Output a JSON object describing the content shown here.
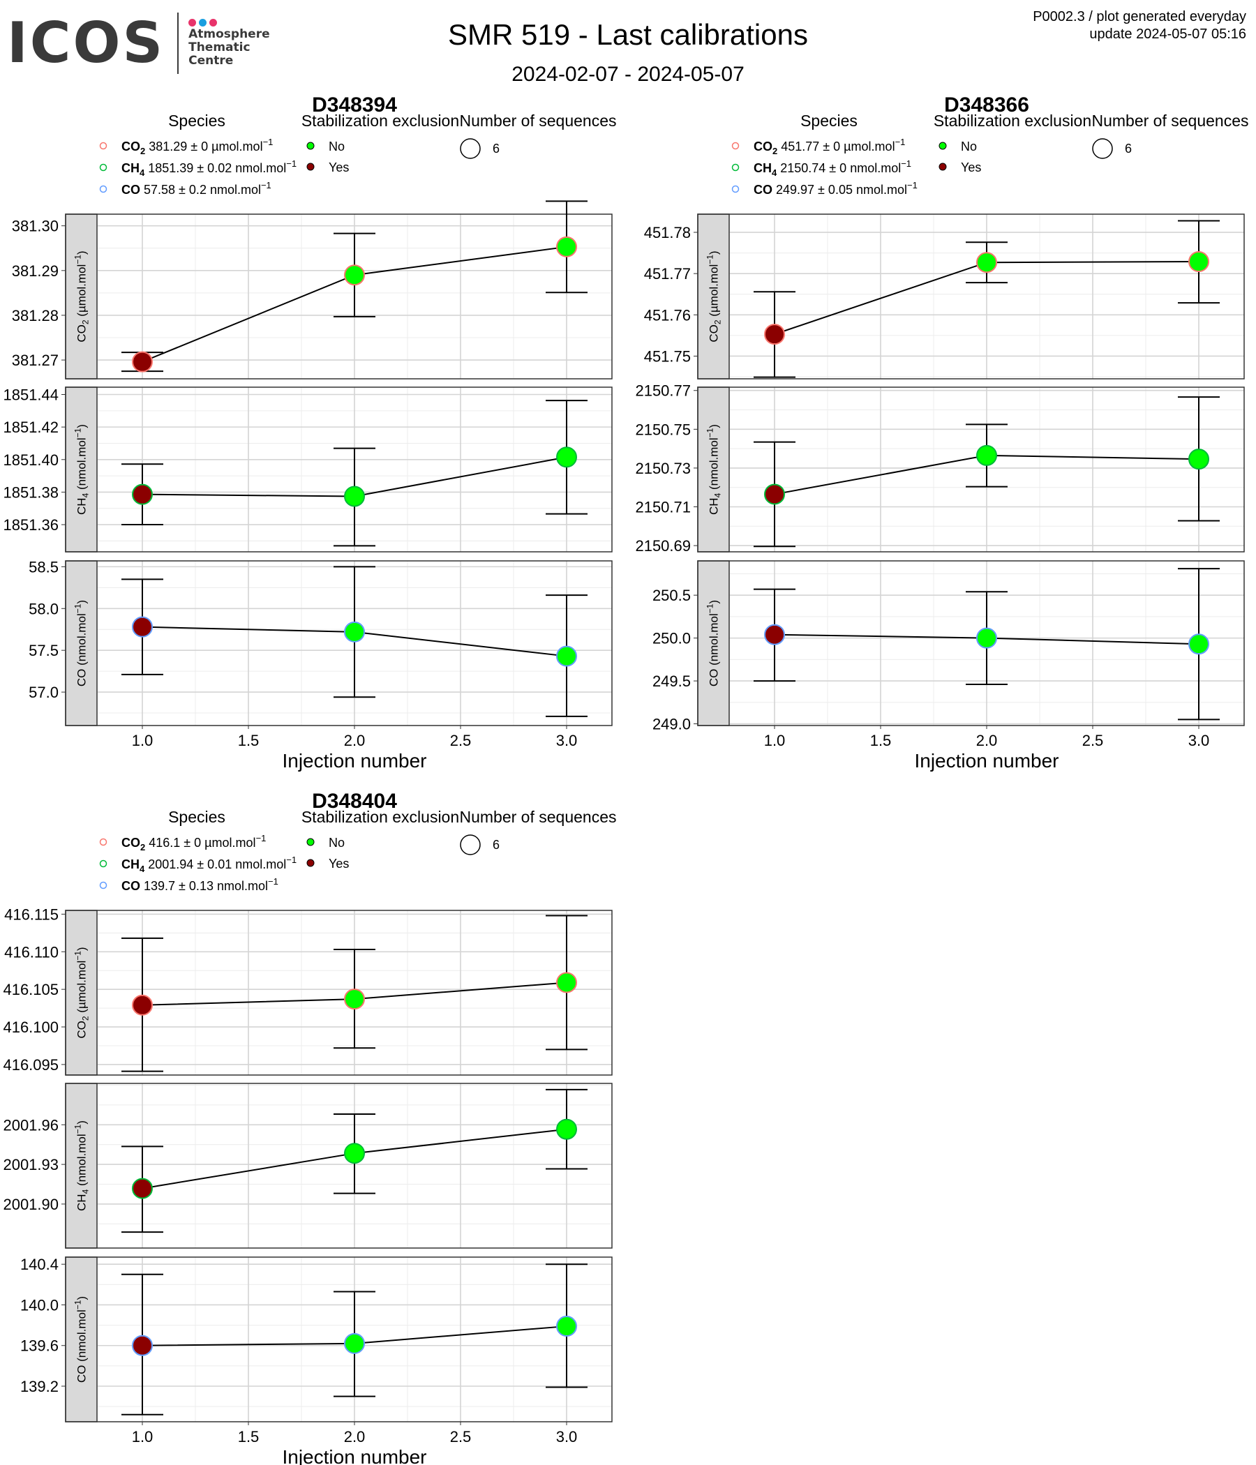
{
  "header": {
    "logo_text": "ICOS",
    "logo_lines": [
      "Atmosphere",
      "Thematic",
      "Centre"
    ],
    "logo_dot_colors": [
      "#e8336a",
      "#1a9fe0",
      "#e8336a"
    ],
    "title": "SMR 519 - Last calibrations",
    "subtitle": "2024-02-07 - 2024-05-07",
    "info_line1": "P0002.3 / plot generated everyday",
    "info_line2": "update  2024-05-07 05:16"
  },
  "legend_titles": {
    "species": "Species",
    "stabilization": "Stabilization exclusion",
    "sequences": "Number of sequences"
  },
  "stabilization_options": [
    {
      "label": "No",
      "color": "#00ff00"
    },
    {
      "label": "Yes",
      "color": "#8b0000"
    }
  ],
  "sequences_value": "6",
  "species_colors": {
    "CO2": "#f8766d",
    "CH4": "#00ba38",
    "CO": "#619cff"
  },
  "xlabel": "Injection number",
  "chart_data": [
    {
      "type": "scatter",
      "title": "D348394",
      "xlabel": "Injection number",
      "xlim": [
        0.8,
        3.22
      ],
      "xticks": [
        "1.0",
        "1.5",
        "2.0",
        "2.5",
        "3.0"
      ],
      "species_legend": [
        {
          "name": "CO2",
          "value": "381.29",
          "unc": "0",
          "unit": "µmol.mol",
          "exp": "−1"
        },
        {
          "name": "CH4",
          "value": "1851.39",
          "unc": "0.02",
          "unit": "nmol.mol",
          "exp": "−1"
        },
        {
          "name": "CO",
          "value": "57.58",
          "unc": "0.2",
          "unit": "nmol.mol",
          "exp": "−1"
        }
      ],
      "panels": [
        {
          "species": "CO2",
          "ylabel_sp": "CO",
          "ylabel_sub": "2",
          "ylabel_unit": "µmol.mol",
          "ylim": [
            381.2658,
            381.3026
          ],
          "yticks": [
            "381.27",
            "381.28",
            "381.29",
            "381.30"
          ],
          "points": [
            {
              "x": 1,
              "y": 381.2696,
              "lo": 381.2675,
              "hi": 381.2717,
              "stab": "Yes"
            },
            {
              "x": 2,
              "y": 381.289,
              "lo": 381.2797,
              "hi": 381.2983,
              "stab": "No"
            },
            {
              "x": 3,
              "y": 381.2953,
              "lo": 381.2851,
              "hi": 381.3055,
              "stab": "No"
            }
          ]
        },
        {
          "species": "CH4",
          "ylabel_sp": "CH",
          "ylabel_sub": "4",
          "ylabel_unit": "nmol.mol",
          "ylim": [
            1851.3433,
            1851.4445
          ],
          "yticks": [
            "1851.36",
            "1851.38",
            "1851.40",
            "1851.42",
            "1851.44"
          ],
          "points": [
            {
              "x": 1,
              "y": 1851.3786,
              "lo": 1851.36,
              "hi": 1851.3972,
              "stab": "Yes"
            },
            {
              "x": 2,
              "y": 1851.3774,
              "lo": 1851.347,
              "hi": 1851.4069,
              "stab": "No"
            },
            {
              "x": 3,
              "y": 1851.4015,
              "lo": 1851.3666,
              "hi": 1851.4363,
              "stab": "No"
            }
          ]
        },
        {
          "species": "CO",
          "ylabel_sp": "CO",
          "ylabel_sub": "",
          "ylabel_unit": "nmol.mol",
          "ylim": [
            56.6,
            58.57
          ],
          "yticks": [
            "57.0",
            "57.5",
            "58.0",
            "58.5"
          ],
          "points": [
            {
              "x": 1,
              "y": 57.78,
              "lo": 57.21,
              "hi": 58.35,
              "stab": "Yes"
            },
            {
              "x": 2,
              "y": 57.72,
              "lo": 56.94,
              "hi": 58.5,
              "stab": "No"
            },
            {
              "x": 3,
              "y": 57.43,
              "lo": 56.71,
              "hi": 58.16,
              "stab": "No"
            }
          ]
        }
      ]
    },
    {
      "type": "scatter",
      "title": "D348366",
      "xlabel": "Injection number",
      "xlim": [
        0.8,
        3.22
      ],
      "xticks": [
        "1.0",
        "1.5",
        "2.0",
        "2.5",
        "3.0"
      ],
      "species_legend": [
        {
          "name": "CO2",
          "value": "451.77",
          "unc": "0",
          "unit": "µmol.mol",
          "exp": "−1"
        },
        {
          "name": "CH4",
          "value": "2150.74",
          "unc": "0",
          "unit": "nmol.mol",
          "exp": "−1"
        },
        {
          "name": "CO",
          "value": "249.97",
          "unc": "0.05",
          "unit": "nmol.mol",
          "exp": "−1"
        }
      ],
      "panels": [
        {
          "species": "CO2",
          "ylabel_sp": "CO",
          "ylabel_sub": "2",
          "ylabel_unit": "µmol.mol",
          "ylim": [
            451.7445,
            451.7844
          ],
          "yticks": [
            "451.75",
            "451.76",
            "451.77",
            "451.78"
          ],
          "points": [
            {
              "x": 1,
              "y": 451.7553,
              "lo": 451.7449,
              "hi": 451.7656,
              "stab": "Yes"
            },
            {
              "x": 2,
              "y": 451.7727,
              "lo": 451.7678,
              "hi": 451.7776,
              "stab": "No"
            },
            {
              "x": 3,
              "y": 451.7729,
              "lo": 451.7629,
              "hi": 451.7828,
              "stab": "No"
            }
          ]
        },
        {
          "species": "CH4",
          "ylabel_sp": "CH",
          "ylabel_sub": "4",
          "ylabel_unit": "nmol.mol",
          "ylim": [
            2150.6868,
            2150.7717
          ],
          "yticks": [
            "2150.69",
            "2150.71",
            "2150.73",
            "2150.75",
            "2150.77"
          ],
          "points": [
            {
              "x": 1,
              "y": 2150.7165,
              "lo": 2150.6896,
              "hi": 2150.7434,
              "stab": "Yes"
            },
            {
              "x": 2,
              "y": 2150.7365,
              "lo": 2150.7204,
              "hi": 2150.7525,
              "stab": "No"
            },
            {
              "x": 3,
              "y": 2150.7346,
              "lo": 2150.7028,
              "hi": 2150.7666,
              "stab": "No"
            }
          ]
        },
        {
          "species": "CO",
          "ylabel_sp": "CO",
          "ylabel_sub": "",
          "ylabel_unit": "nmol.mol",
          "ylim": [
            248.98,
            250.9
          ],
          "yticks": [
            "249.0",
            "249.5",
            "250.0",
            "250.5"
          ],
          "points": [
            {
              "x": 1,
              "y": 250.04,
              "lo": 249.5,
              "hi": 250.57,
              "stab": "Yes"
            },
            {
              "x": 2,
              "y": 250.0,
              "lo": 249.46,
              "hi": 250.54,
              "stab": "No"
            },
            {
              "x": 3,
              "y": 249.93,
              "lo": 249.05,
              "hi": 250.81,
              "stab": "No"
            }
          ]
        }
      ]
    },
    {
      "type": "scatter",
      "title": "D348404",
      "xlabel": "Injection number",
      "xlim": [
        0.8,
        3.22
      ],
      "xticks": [
        "1.0",
        "1.5",
        "2.0",
        "2.5",
        "3.0"
      ],
      "species_legend": [
        {
          "name": "CO2",
          "value": "416.1",
          "unc": "0",
          "unit": "µmol.mol",
          "exp": "−1"
        },
        {
          "name": "CH4",
          "value": "2001.94",
          "unc": "0.01",
          "unit": "nmol.mol",
          "exp": "−1"
        },
        {
          "name": "CO",
          "value": "139.7",
          "unc": "0.13",
          "unit": "nmol.mol",
          "exp": "−1"
        }
      ],
      "panels": [
        {
          "species": "CO2",
          "ylabel_sp": "CO",
          "ylabel_sub": "2",
          "ylabel_unit": "µmol.mol",
          "ylim": [
            416.0936,
            416.1155
          ],
          "yticks": [
            "416.095",
            "416.100",
            "416.105",
            "416.110",
            "416.115"
          ],
          "points": [
            {
              "x": 1,
              "y": 416.1029,
              "lo": 416.0941,
              "hi": 416.1118,
              "stab": "Yes"
            },
            {
              "x": 2,
              "y": 416.1037,
              "lo": 416.0972,
              "hi": 416.1103,
              "stab": "No"
            },
            {
              "x": 3,
              "y": 416.1059,
              "lo": 416.097,
              "hi": 416.1148,
              "stab": "No"
            }
          ]
        },
        {
          "species": "CH4",
          "ylabel_sp": "CH",
          "ylabel_sub": "4",
          "ylabel_unit": "nmol.mol",
          "ylim": [
            2001.8667,
            2001.9913
          ],
          "yticks": [
            "2001.90",
            "2001.93",
            "2001.96"
          ],
          "points": [
            {
              "x": 1,
              "y": 2001.9118,
              "lo": 2001.8788,
              "hi": 2001.9436,
              "stab": "Yes"
            },
            {
              "x": 2,
              "y": 2001.9384,
              "lo": 2001.9081,
              "hi": 2001.9681,
              "stab": "No"
            },
            {
              "x": 3,
              "y": 2001.9566,
              "lo": 2001.9266,
              "hi": 2001.9866,
              "stab": "No"
            }
          ]
        },
        {
          "species": "CO",
          "ylabel_sp": "CO",
          "ylabel_sub": "",
          "ylabel_unit": "nmol.mol",
          "ylim": [
            138.85,
            140.47
          ],
          "yticks": [
            "139.2",
            "139.6",
            "140.0",
            "140.4"
          ],
          "points": [
            {
              "x": 1,
              "y": 139.6,
              "lo": 138.92,
              "hi": 140.3,
              "stab": "Yes"
            },
            {
              "x": 2,
              "y": 139.62,
              "lo": 139.1,
              "hi": 140.13,
              "stab": "No"
            },
            {
              "x": 3,
              "y": 139.79,
              "lo": 139.19,
              "hi": 140.4,
              "stab": "No"
            }
          ]
        }
      ]
    }
  ]
}
